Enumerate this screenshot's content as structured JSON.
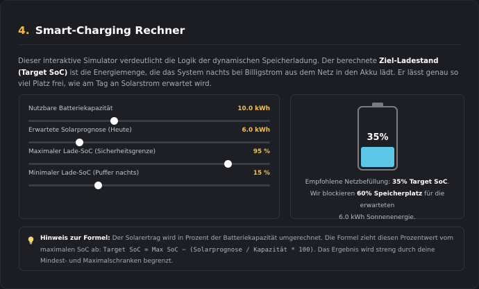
{
  "section": {
    "number": "4.",
    "title": "Smart-Charging Rechner"
  },
  "intro": {
    "part1": "Dieser interaktive Simulator verdeutlicht die Logik der dynamischen Speicherladung. Der berechnete ",
    "bold": "Ziel-Ladestand (Target SoC)",
    "part2": " ist die Energiemenge, die das System nachts bei Billigstrom aus dem Netz in den Akku lädt. Er lässt genau so viel Platz frei, wie am Tag an Solarstrom erwartet wird."
  },
  "sliders": [
    {
      "label": "Nutzbare Batteriekapazität",
      "value_text": "10.0 kWh",
      "fraction": 0.355
    },
    {
      "label": "Erwartete Solarprognose (Heute)",
      "value_text": "6.0 kWh",
      "fraction": 0.21
    },
    {
      "label": "Maximaler Lade-SoC (Sicherheitsgrenze)",
      "value_text": "95 %",
      "fraction": 0.825
    },
    {
      "label": "Minimaler Lade-SoC (Puffer nachts)",
      "value_text": "15 %",
      "fraction": 0.29
    }
  ],
  "battery": {
    "percent_text": "35%",
    "fill_fraction": 0.35,
    "line1_pre": "Empfohlene Netzbefüllung: ",
    "line1_bold": "35% Target SoC",
    "line1_post": ".",
    "line2_pre": "Wir blockieren ",
    "line2_bold": "60% Speicherplatz",
    "line2_post": " für die erwarteten",
    "line3": "6.0 kWh Sonnenenergie.",
    "fill_color": "#5cc8e6"
  },
  "note": {
    "icon": "lightbulb-icon",
    "bold": "Hinweis zur Formel:",
    "text1": " Der Solarertrag wird in Prozent der Batteriekapazität umgerechnet. Die Formel zieht diesen Prozentwert vom maximalen SoC ab: ",
    "formula": "Target SoC = Max SoC − (Solarprognose / Kapazität * 100)",
    "text2": ". Das Ergebnis wird streng durch deine Mindest- und Maximalschranken begrenzt."
  },
  "colors": {
    "accent": "#f0b94a",
    "value": "#f0c44d",
    "battery_fill": "#5cc8e6"
  }
}
